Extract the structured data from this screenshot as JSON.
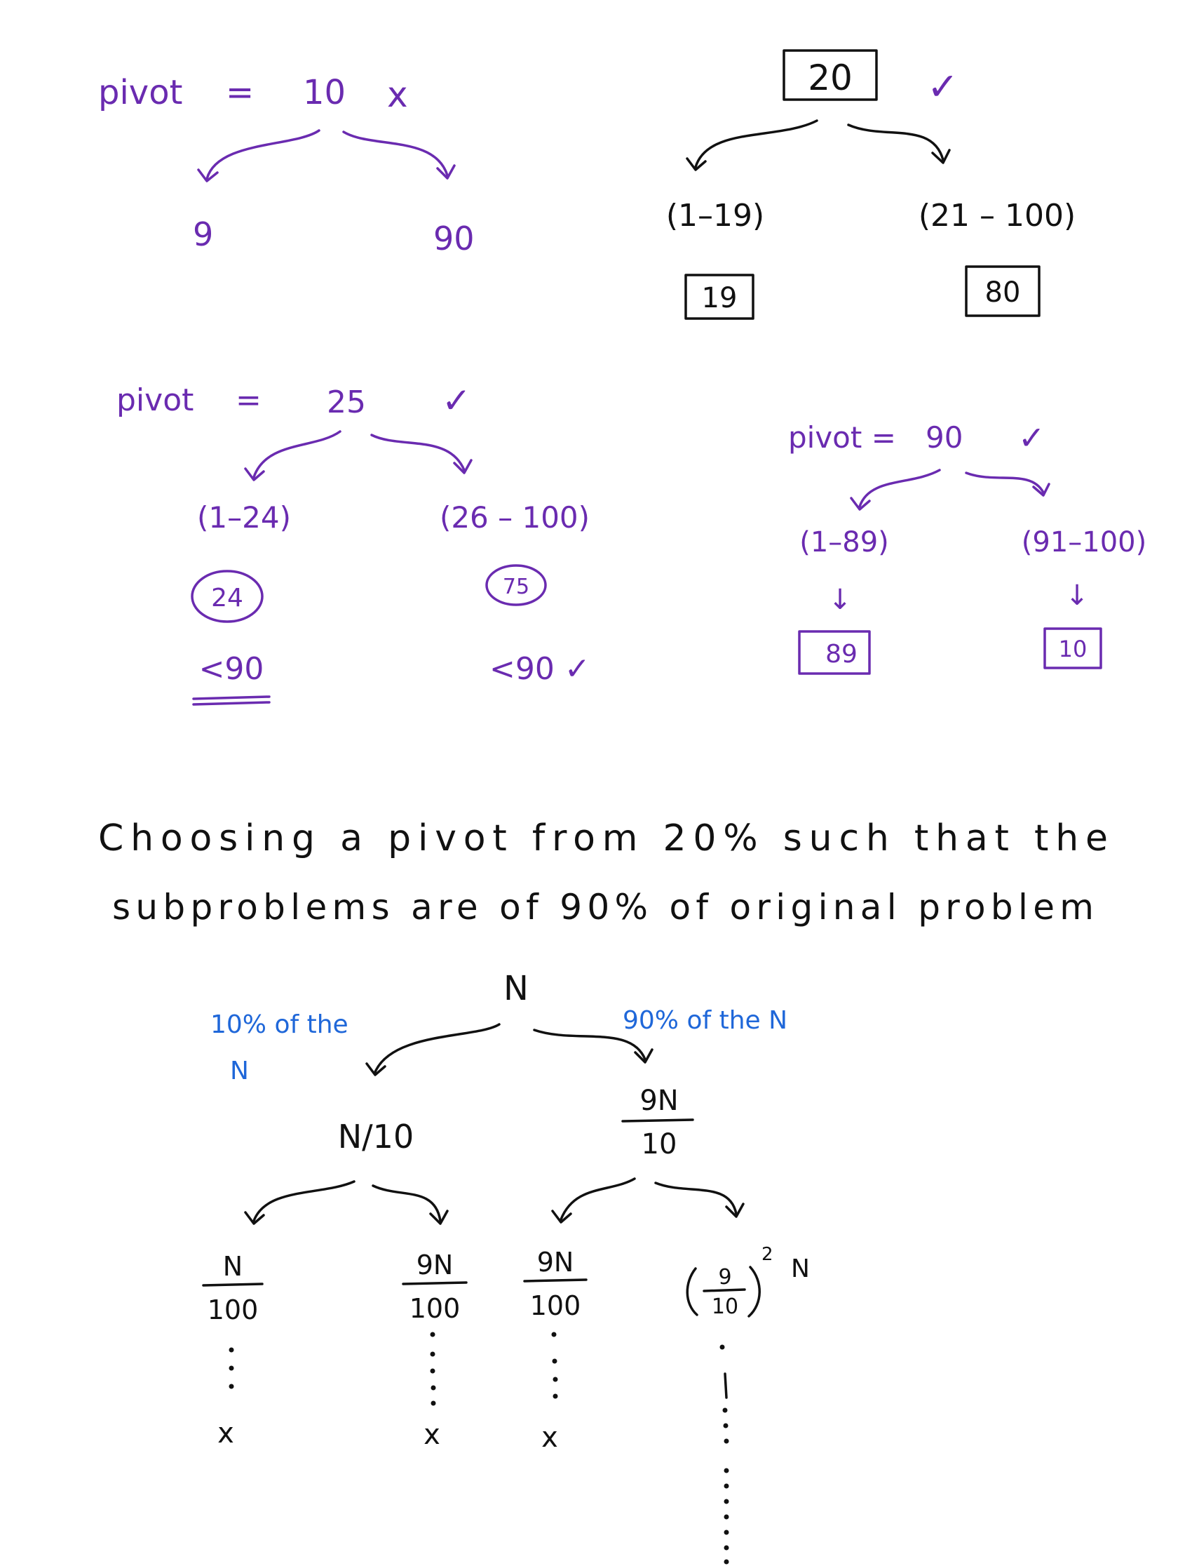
{
  "colors": {
    "purple": "#6a2bb0",
    "black": "#111111",
    "blue": "#1f67d9"
  },
  "example1": {
    "label": "pivot",
    "eq": "=",
    "value": "10",
    "mark": "x",
    "left": "9",
    "right": "90"
  },
  "example2": {
    "root": "20",
    "mark": "✓",
    "left_range": "(1–19)",
    "right_range": "(21 – 100)",
    "left_count": "19",
    "right_count": "80"
  },
  "example3": {
    "label": "pivot",
    "eq": "=",
    "value": "25",
    "mark": "✓",
    "left_range": "(1–24)",
    "right_range": "(26 – 100)",
    "left_count": "24",
    "right_count": "75",
    "left_cmp": "<90",
    "right_cmp": "<90 ✓"
  },
  "example4": {
    "label": "pivot =",
    "value": "90",
    "mark": "✓",
    "left_range": "(1–89)",
    "right_range": "(91–100)",
    "left_arrow": "↓",
    "right_arrow": "↓",
    "left_count": "89",
    "right_count": "10"
  },
  "sentence": {
    "line1": "Choosing  a  pivot  from 20%  such that the",
    "line2": "subproblems  are  of  90% of  original problem"
  },
  "tree": {
    "root": "N",
    "left_note": "10% of the",
    "left_note_n": "N",
    "right_note": "90% of the N",
    "l1_left": "N/10",
    "l1_right_num": "9N",
    "l1_right_den": "10",
    "l2": [
      {
        "num": "N",
        "den": "100"
      },
      {
        "num": "9N",
        "den": "100"
      },
      {
        "num": "9N",
        "den": "100"
      }
    ],
    "l2_last_num": "9",
    "l2_last_den": "10",
    "l2_last_exp": "2",
    "l2_last_n": "N",
    "leaf": "x"
  }
}
